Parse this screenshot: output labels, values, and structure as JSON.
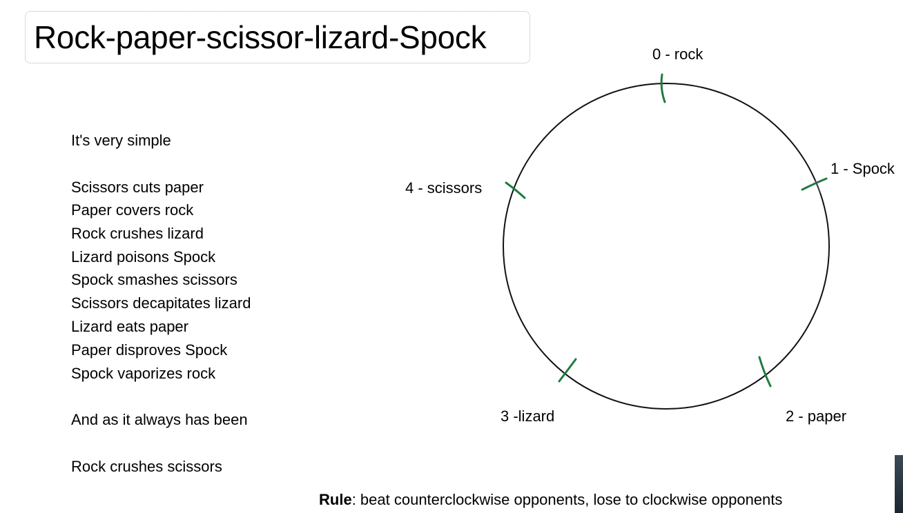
{
  "title": "Rock-paper-scissor-lizard-Spock",
  "rules": {
    "intro": "It's very simple",
    "lines": [
      "Scissors cuts paper",
      "Paper covers rock",
      "Rock crushes lizard",
      "Lizard poisons Spock",
      "Spock smashes scissors",
      "Scissors decapitates lizard",
      "Lizard eats paper",
      "Paper disproves Spock",
      "Spock vaporizes rock"
    ],
    "transition": "And as it always has been",
    "final": "Rock crushes scissors"
  },
  "diagram": {
    "nodes": [
      {
        "label": "0 - rock"
      },
      {
        "label": "1 - Spock"
      },
      {
        "label": "2 - paper"
      },
      {
        "label": "3 -lizard"
      },
      {
        "label": "4 - scissors"
      }
    ],
    "tick_color": "#1f7a3f"
  },
  "footer": {
    "bold": "Rule",
    "text": ": beat counterclockwise opponents, lose to clockwise opponents"
  }
}
